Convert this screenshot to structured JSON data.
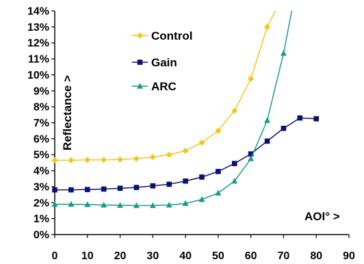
{
  "chart_data": {
    "type": "line",
    "xlabel": "AOI° >",
    "ylabel": "Reflectance >",
    "xlim": [
      0,
      90
    ],
    "ylim": [
      0,
      14
    ],
    "xticks": [
      0,
      10,
      20,
      30,
      40,
      50,
      60,
      70,
      80,
      90
    ],
    "yticks": [
      0,
      1,
      2,
      3,
      4,
      5,
      6,
      7,
      8,
      9,
      10,
      11,
      12,
      13,
      14
    ],
    "ytick_format": "percent",
    "grid": false,
    "legend_position": "top-center",
    "series": [
      {
        "name": "Control",
        "color": "#F5C518",
        "marker": "diamond",
        "x": [
          0,
          5,
          10,
          15,
          20,
          25,
          30,
          35,
          40,
          45,
          50,
          55,
          60,
          65
        ],
        "y": [
          4.65,
          4.65,
          4.68,
          4.68,
          4.7,
          4.75,
          4.85,
          5.0,
          5.25,
          5.75,
          6.5,
          7.75,
          9.75,
          13.0
        ],
        "trend_end": [
          67.5,
          14
        ]
      },
      {
        "name": "Gain",
        "color": "#0A1172",
        "marker": "square",
        "x": [
          0,
          5,
          10,
          15,
          20,
          25,
          30,
          35,
          40,
          45,
          50,
          55,
          60,
          65,
          70,
          75,
          80
        ],
        "y": [
          2.8,
          2.8,
          2.82,
          2.85,
          2.9,
          2.95,
          3.05,
          3.15,
          3.35,
          3.6,
          3.95,
          4.45,
          5.05,
          5.85,
          6.65,
          7.3,
          7.25
        ],
        "trend_end": null
      },
      {
        "name": "ARC",
        "color": "#1A9A8E",
        "marker": "triangle",
        "x": [
          0,
          5,
          10,
          15,
          20,
          25,
          30,
          35,
          40,
          45,
          50,
          55,
          60,
          65,
          70
        ],
        "y": [
          1.9,
          1.9,
          1.88,
          1.85,
          1.83,
          1.82,
          1.82,
          1.85,
          1.95,
          2.2,
          2.6,
          3.35,
          4.75,
          7.15,
          11.35
        ],
        "trend_end": [
          72.5,
          14
        ]
      }
    ]
  }
}
